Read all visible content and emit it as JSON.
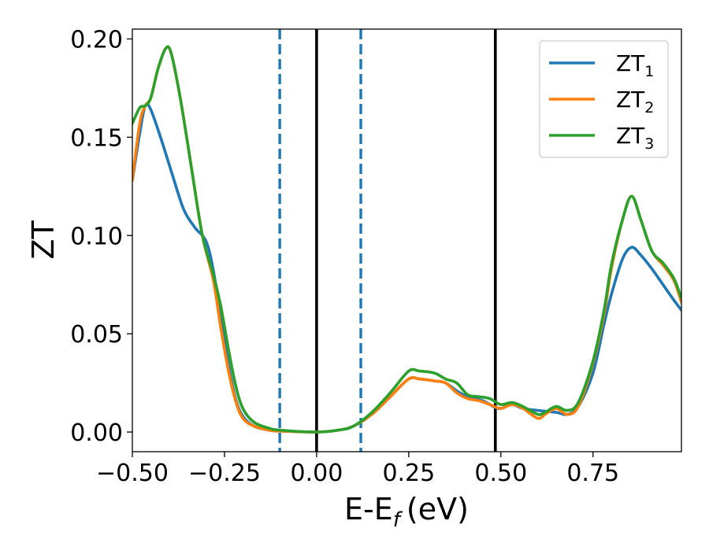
{
  "chart_data": {
    "type": "line",
    "xlabel": "E-E",
    "xlabel_subscript": "f",
    "xlabel_unit": "(eV)",
    "ylabel": "ZT",
    "xlim": [
      -0.5,
      0.99
    ],
    "ylim": [
      -0.01,
      0.205
    ],
    "grid": false,
    "legend_position": "top-right",
    "x_ticks": [
      -0.5,
      -0.25,
      0.0,
      0.25,
      0.5,
      0.75
    ],
    "x_tick_labels": [
      "−0.50",
      "−0.25",
      "0.00",
      "0.25",
      "0.50",
      "0.75"
    ],
    "y_ticks": [
      0.0,
      0.05,
      0.1,
      0.15,
      0.2
    ],
    "y_tick_labels": [
      "0.00",
      "0.05",
      "0.10",
      "0.15",
      "0.20"
    ],
    "vertical_lines": [
      {
        "x": -0.1,
        "color": "#1f77b4",
        "style": "dashed"
      },
      {
        "x": 0.0,
        "color": "#000000",
        "style": "solid"
      },
      {
        "x": 0.12,
        "color": "#1f77b4",
        "style": "dashed"
      },
      {
        "x": 0.485,
        "color": "#000000",
        "style": "solid"
      }
    ],
    "series": [
      {
        "name": "ZT",
        "subscript": "1",
        "color": "#1f77b4",
        "points": [
          [
            -0.5,
            0.128
          ],
          [
            -0.48,
            0.152
          ],
          [
            -0.465,
            0.166
          ],
          [
            -0.45,
            0.164
          ],
          [
            -0.42,
            0.148
          ],
          [
            -0.39,
            0.13
          ],
          [
            -0.36,
            0.113
          ],
          [
            -0.33,
            0.104
          ],
          [
            -0.3,
            0.097
          ],
          [
            -0.28,
            0.082
          ],
          [
            -0.26,
            0.058
          ],
          [
            -0.24,
            0.035
          ],
          [
            -0.22,
            0.017
          ],
          [
            -0.2,
            0.008
          ],
          [
            -0.17,
            0.003
          ],
          [
            -0.13,
            0.001
          ],
          [
            -0.1,
            0.0005
          ],
          [
            0.0,
            0.0
          ],
          [
            0.06,
            0.001
          ],
          [
            0.1,
            0.003
          ],
          [
            0.15,
            0.009
          ],
          [
            0.2,
            0.018
          ],
          [
            0.25,
            0.027
          ],
          [
            0.28,
            0.027
          ],
          [
            0.32,
            0.026
          ],
          [
            0.35,
            0.025
          ],
          [
            0.38,
            0.021
          ],
          [
            0.41,
            0.018
          ],
          [
            0.45,
            0.016
          ],
          [
            0.48,
            0.013
          ],
          [
            0.5,
            0.012
          ],
          [
            0.53,
            0.014
          ],
          [
            0.56,
            0.012
          ],
          [
            0.6,
            0.011
          ],
          [
            0.65,
            0.01
          ],
          [
            0.68,
            0.009
          ],
          [
            0.71,
            0.013
          ],
          [
            0.75,
            0.03
          ],
          [
            0.78,
            0.055
          ],
          [
            0.8,
            0.07
          ],
          [
            0.83,
            0.088
          ],
          [
            0.855,
            0.094
          ],
          [
            0.88,
            0.09
          ],
          [
            0.91,
            0.083
          ],
          [
            0.94,
            0.075
          ],
          [
            0.97,
            0.067
          ],
          [
            0.99,
            0.062
          ]
        ]
      },
      {
        "name": "ZT",
        "subscript": "2",
        "color": "#ff7f0e",
        "points": [
          [
            -0.5,
            0.128
          ],
          [
            -0.48,
            0.157
          ],
          [
            -0.465,
            0.166
          ],
          [
            -0.45,
            0.17
          ],
          [
            -0.43,
            0.185
          ],
          [
            -0.41,
            0.195
          ],
          [
            -0.395,
            0.193
          ],
          [
            -0.37,
            0.17
          ],
          [
            -0.34,
            0.135
          ],
          [
            -0.31,
            0.1
          ],
          [
            -0.28,
            0.077
          ],
          [
            -0.26,
            0.053
          ],
          [
            -0.24,
            0.032
          ],
          [
            -0.22,
            0.016
          ],
          [
            -0.2,
            0.007
          ],
          [
            -0.17,
            0.003
          ],
          [
            -0.13,
            0.001
          ],
          [
            -0.1,
            0.0005
          ],
          [
            0.0,
            0.0
          ],
          [
            0.06,
            0.001
          ],
          [
            0.1,
            0.003
          ],
          [
            0.15,
            0.009
          ],
          [
            0.2,
            0.018
          ],
          [
            0.25,
            0.027
          ],
          [
            0.28,
            0.027
          ],
          [
            0.32,
            0.026
          ],
          [
            0.35,
            0.025
          ],
          [
            0.38,
            0.02
          ],
          [
            0.41,
            0.017
          ],
          [
            0.44,
            0.016
          ],
          [
            0.47,
            0.014
          ],
          [
            0.5,
            0.012
          ],
          [
            0.53,
            0.014
          ],
          [
            0.56,
            0.012
          ],
          [
            0.6,
            0.007
          ],
          [
            0.62,
            0.009
          ],
          [
            0.65,
            0.012
          ],
          [
            0.68,
            0.009
          ],
          [
            0.71,
            0.013
          ],
          [
            0.75,
            0.035
          ],
          [
            0.78,
            0.06
          ],
          [
            0.8,
            0.083
          ],
          [
            0.83,
            0.108
          ],
          [
            0.855,
            0.12
          ],
          [
            0.88,
            0.108
          ],
          [
            0.91,
            0.092
          ],
          [
            0.94,
            0.085
          ],
          [
            0.97,
            0.077
          ],
          [
            0.99,
            0.066
          ]
        ]
      },
      {
        "name": "ZT",
        "subscript": "3",
        "color": "#2ca02c",
        "points": [
          [
            -0.5,
            0.157
          ],
          [
            -0.48,
            0.165
          ],
          [
            -0.465,
            0.166
          ],
          [
            -0.45,
            0.17
          ],
          [
            -0.43,
            0.185
          ],
          [
            -0.41,
            0.195
          ],
          [
            -0.395,
            0.193
          ],
          [
            -0.37,
            0.17
          ],
          [
            -0.34,
            0.135
          ],
          [
            -0.31,
            0.1
          ],
          [
            -0.28,
            0.08
          ],
          [
            -0.26,
            0.064
          ],
          [
            -0.24,
            0.043
          ],
          [
            -0.22,
            0.024
          ],
          [
            -0.2,
            0.012
          ],
          [
            -0.17,
            0.005
          ],
          [
            -0.13,
            0.002
          ],
          [
            -0.1,
            0.001
          ],
          [
            0.0,
            0.0
          ],
          [
            0.06,
            0.001
          ],
          [
            0.1,
            0.003
          ],
          [
            0.15,
            0.01
          ],
          [
            0.2,
            0.02
          ],
          [
            0.25,
            0.031
          ],
          [
            0.28,
            0.031
          ],
          [
            0.32,
            0.03
          ],
          [
            0.35,
            0.027
          ],
          [
            0.38,
            0.025
          ],
          [
            0.41,
            0.019
          ],
          [
            0.44,
            0.018
          ],
          [
            0.47,
            0.017
          ],
          [
            0.5,
            0.014
          ],
          [
            0.53,
            0.015
          ],
          [
            0.56,
            0.013
          ],
          [
            0.6,
            0.009
          ],
          [
            0.62,
            0.01
          ],
          [
            0.65,
            0.013
          ],
          [
            0.68,
            0.011
          ],
          [
            0.71,
            0.015
          ],
          [
            0.75,
            0.036
          ],
          [
            0.78,
            0.062
          ],
          [
            0.8,
            0.085
          ],
          [
            0.83,
            0.108
          ],
          [
            0.855,
            0.12
          ],
          [
            0.88,
            0.108
          ],
          [
            0.91,
            0.092
          ],
          [
            0.94,
            0.086
          ],
          [
            0.97,
            0.078
          ],
          [
            0.99,
            0.068
          ]
        ]
      }
    ]
  }
}
